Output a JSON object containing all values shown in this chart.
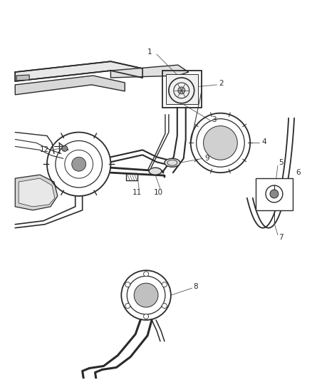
{
  "bg_color": "#ffffff",
  "lc": "#2a2a2a",
  "fig_width": 4.38,
  "fig_height": 5.33,
  "dpi": 100,
  "callout_color": "#2a2a2a",
  "callout_line_color": "#555555",
  "fs": 7.5
}
